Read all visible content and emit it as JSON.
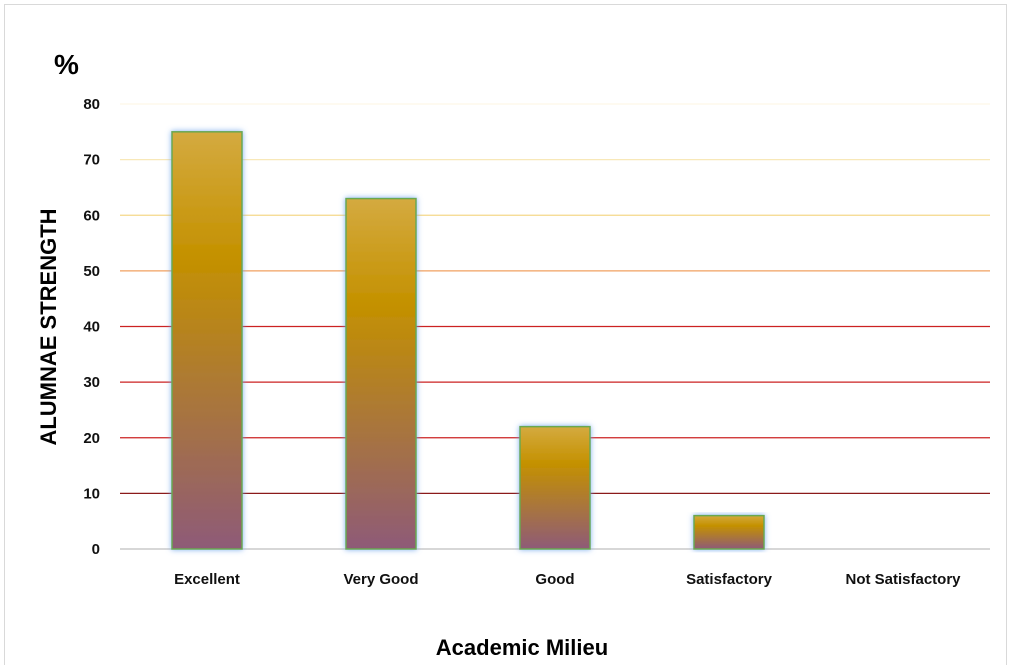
{
  "chart_data": {
    "type": "bar",
    "title": "",
    "unit_label": "%",
    "xlabel": "Academic Milieu",
    "ylabel": "ALUMNAE STRENGTH",
    "categories": [
      "Excellent",
      "Very Good",
      "Good",
      "Satisfactory",
      "Not Satisfactory"
    ],
    "values": [
      75,
      63,
      22,
      6,
      0
    ],
    "ylim": [
      0,
      80
    ],
    "yticks": [
      "0",
      "10",
      "20",
      "30",
      "40",
      "50",
      "60",
      "70",
      "80"
    ],
    "grid": true,
    "legend": "none",
    "colors": {
      "bar_top": "#d4aa40",
      "bar_mid": "#c49100",
      "bar_bottom": "#8e5a78",
      "bar_outline": "#6aa84f",
      "bar_glow": "#7fb0f0",
      "grid_10": "#8b1a1a",
      "grid_20_40": "#cc2222",
      "grid_50": "#f0a060",
      "grid_60": "#f5d88a",
      "grid_70": "#f8e8b8",
      "grid_80": "#fdf6e6"
    }
  }
}
